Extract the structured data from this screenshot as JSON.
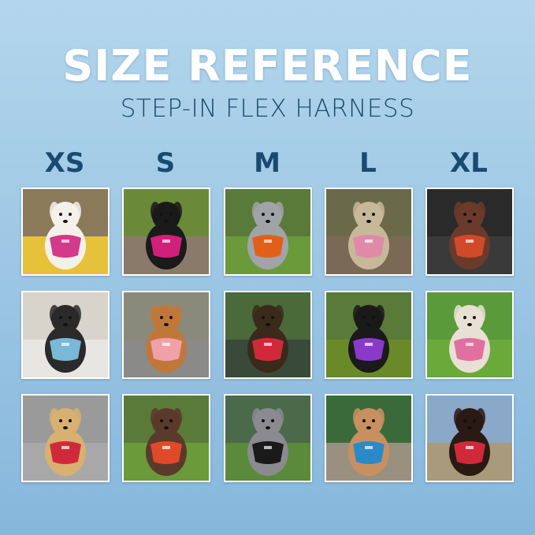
{
  "title": "SIZE REFERENCE",
  "subtitle": "STEP-IN FLEX HARNESS",
  "sizes": [
    "XS",
    "S",
    "M",
    "L",
    "XL"
  ],
  "colors": {
    "title": "#ffffff",
    "subtitle": "#1d4a6b",
    "size_label": "#1b4a70"
  },
  "photos": [
    [
      {
        "bg": "#8a7a5a",
        "ground": "#e6c23a",
        "dog": "#f4f1ea",
        "harness": "#d23a8a"
      },
      {
        "bg": "#6a8a3a",
        "ground": "#8a7a6a",
        "dog": "#1a1a1a",
        "harness": "#d0207a"
      },
      {
        "bg": "#5a7a3a",
        "ground": "#6a9a3a",
        "dog": "#a0a4a8",
        "harness": "#e0601a"
      },
      {
        "bg": "#6a6a4a",
        "ground": "#7a6a55",
        "dog": "#c8b89a",
        "harness": "#e08aa8"
      },
      {
        "bg": "#2a2a2a",
        "ground": "#3a3a3a",
        "dog": "#6a3a2a",
        "harness": "#d04a2a"
      }
    ],
    [
      {
        "bg": "#d8d4cc",
        "ground": "#e8e6e2",
        "dog": "#2a2a2a",
        "harness": "#7ab8d8"
      },
      {
        "bg": "#8a8a7a",
        "ground": "#8a8a88",
        "dog": "#c0783a",
        "harness": "#f0a0a8"
      },
      {
        "bg": "#4a6a3a",
        "ground": "#3a4a3a",
        "dog": "#3a2a1a",
        "harness": "#d02a3a"
      },
      {
        "bg": "#5a7a3a",
        "ground": "#6a8a2a",
        "dog": "#1a1a1a",
        "harness": "#8a3ac8"
      },
      {
        "bg": "#5a9a3a",
        "ground": "#6aaa3a",
        "dog": "#e8e0d4",
        "harness": "#e070a0"
      }
    ],
    [
      {
        "bg": "#9a9a9a",
        "ground": "#a8a8a8",
        "dog": "#d8b070",
        "harness": "#d02a3a"
      },
      {
        "bg": "#5a7a3a",
        "ground": "#6a9a3a",
        "dog": "#5a3a2a",
        "harness": "#e04a2a"
      },
      {
        "bg": "#4a6a4a",
        "ground": "#5a8a3a",
        "dog": "#8a8a90",
        "harness": "#1a1a1a"
      },
      {
        "bg": "#3a6a3a",
        "ground": "#9a9080",
        "dog": "#c89060",
        "harness": "#2a8ac8"
      },
      {
        "bg": "#8aa8c8",
        "ground": "#a89a7a",
        "dog": "#2a1a14",
        "harness": "#d02a3a"
      }
    ]
  ]
}
